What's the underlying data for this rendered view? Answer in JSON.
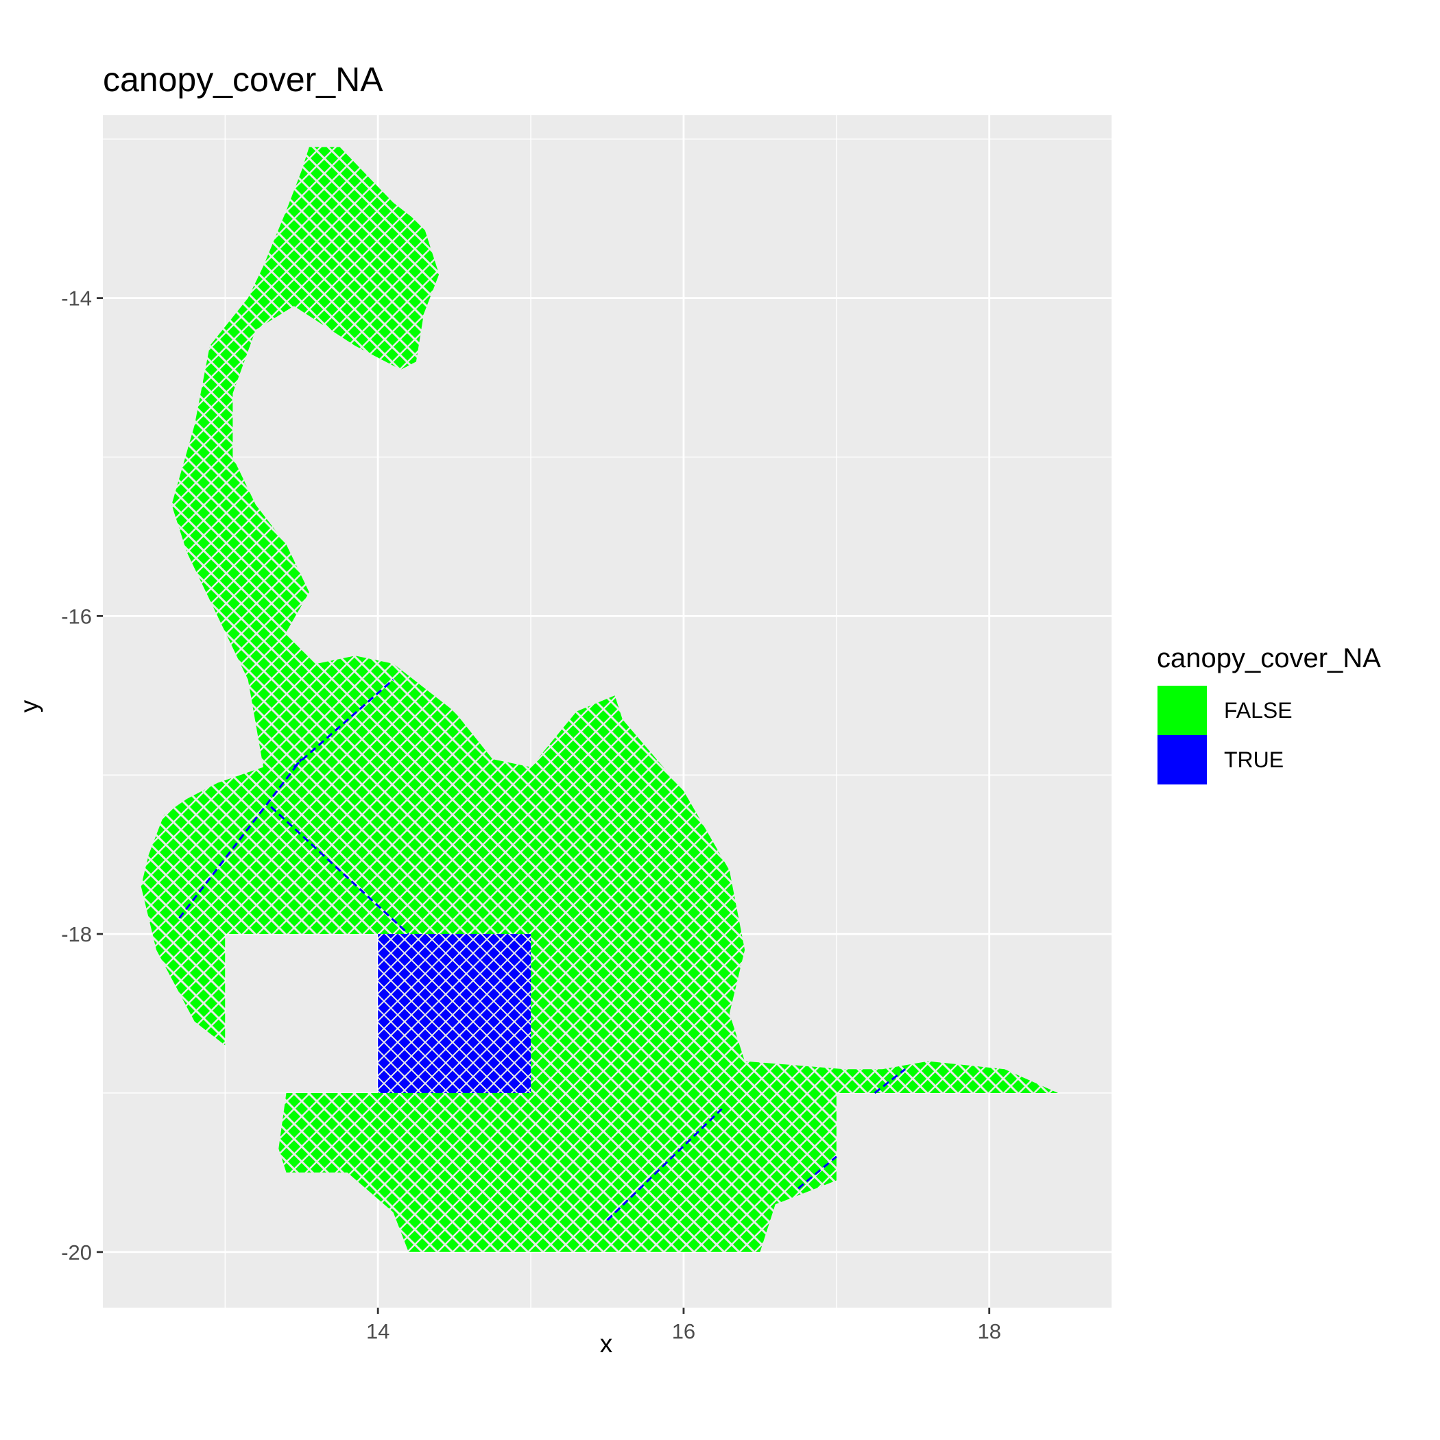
{
  "chart_data": {
    "type": "raster",
    "title": "canopy_cover_NA",
    "xlabel": "x",
    "ylabel": "y",
    "xlim": [
      12.2,
      18.8
    ],
    "ylim": [
      -20.35,
      -12.85
    ],
    "x_ticks": [
      14,
      16,
      18
    ],
    "x_tick_labels": [
      "14",
      "16",
      "18"
    ],
    "y_ticks": [
      -14,
      -16,
      -18,
      -20
    ],
    "y_tick_labels": [
      "-14",
      "-16",
      "-18",
      "-20"
    ],
    "x_minor_gridlines": [
      13,
      15,
      17
    ],
    "y_minor_gridlines": [
      -13,
      -15,
      -17,
      -19
    ],
    "background": "#ebebeb",
    "grid": true,
    "legend": {
      "title": "canopy_cover_NA",
      "position": "right",
      "entries": [
        {
          "label": "FALSE",
          "color": "#00ff00"
        },
        {
          "label": "TRUE",
          "color": "#0000ff"
        }
      ]
    },
    "series": [
      {
        "label": "FALSE",
        "color": "#00ff00",
        "region": [
          [
            13.55,
            -13.05
          ],
          [
            13.75,
            -13.05
          ],
          [
            13.95,
            -13.25
          ],
          [
            14.1,
            -13.4
          ],
          [
            14.3,
            -13.55
          ],
          [
            14.4,
            -13.85
          ],
          [
            14.3,
            -14.1
          ],
          [
            14.25,
            -14.4
          ],
          [
            14.15,
            -14.45
          ],
          [
            13.85,
            -14.3
          ],
          [
            13.45,
            -14.05
          ],
          [
            13.2,
            -14.2
          ],
          [
            13.05,
            -14.6
          ],
          [
            13.05,
            -15.0
          ],
          [
            13.2,
            -15.3
          ],
          [
            13.4,
            -15.55
          ],
          [
            13.55,
            -15.85
          ],
          [
            13.4,
            -16.1
          ],
          [
            13.6,
            -16.3
          ],
          [
            13.85,
            -16.25
          ],
          [
            14.1,
            -16.3
          ],
          [
            14.5,
            -16.6
          ],
          [
            14.75,
            -16.9
          ],
          [
            15.0,
            -16.95
          ],
          [
            15.3,
            -16.6
          ],
          [
            15.55,
            -16.5
          ],
          [
            15.6,
            -16.65
          ],
          [
            16.0,
            -17.1
          ],
          [
            16.3,
            -17.6
          ],
          [
            16.4,
            -18.1
          ],
          [
            16.3,
            -18.5
          ],
          [
            16.4,
            -18.8
          ],
          [
            17.05,
            -18.85
          ],
          [
            17.3,
            -18.85
          ],
          [
            17.6,
            -18.8
          ],
          [
            18.1,
            -18.85
          ],
          [
            18.45,
            -19.0
          ],
          [
            17.0,
            -19.0
          ],
          [
            17.0,
            -19.55
          ],
          [
            16.6,
            -19.7
          ],
          [
            16.5,
            -20.0
          ],
          [
            14.2,
            -20.0
          ],
          [
            14.1,
            -19.75
          ],
          [
            13.8,
            -19.5
          ],
          [
            13.4,
            -19.5
          ],
          [
            13.35,
            -19.35
          ],
          [
            13.4,
            -19.0
          ],
          [
            15.0,
            -19.0
          ],
          [
            15.0,
            -18.0
          ],
          [
            13.0,
            -18.0
          ],
          [
            13.0,
            -18.7
          ],
          [
            12.8,
            -18.55
          ],
          [
            12.55,
            -18.1
          ],
          [
            12.45,
            -17.7
          ],
          [
            12.5,
            -17.5
          ],
          [
            12.6,
            -17.25
          ],
          [
            12.75,
            -17.15
          ],
          [
            12.95,
            -17.05
          ],
          [
            13.25,
            -16.95
          ],
          [
            13.15,
            -16.4
          ],
          [
            12.95,
            -16.0
          ],
          [
            12.75,
            -15.6
          ],
          [
            12.65,
            -15.3
          ],
          [
            12.8,
            -14.8
          ],
          [
            12.9,
            -14.3
          ],
          [
            13.15,
            -14.0
          ],
          [
            13.25,
            -13.8
          ],
          [
            13.4,
            -13.45
          ],
          [
            13.5,
            -13.2
          ]
        ]
      },
      {
        "label": "TRUE",
        "color": "#0000ff",
        "region": [
          [
            14.0,
            -18.0
          ],
          [
            15.0,
            -18.0
          ],
          [
            15.0,
            -19.0
          ],
          [
            14.0,
            -19.0
          ]
        ],
        "streaks": [
          [
            [
              12.7,
              -17.9
            ],
            [
              13.5,
              -16.9
            ]
          ],
          [
            [
              13.3,
              -17.2
            ],
            [
              14.2,
              -18.0
            ]
          ],
          [
            [
              13.45,
              -16.95
            ],
            [
              14.1,
              -16.4
            ]
          ],
          [
            [
              15.5,
              -19.8
            ],
            [
              16.25,
              -19.1
            ]
          ],
          [
            [
              16.75,
              -19.6
            ],
            [
              17.0,
              -19.4
            ]
          ],
          [
            [
              17.25,
              -19.0
            ],
            [
              17.45,
              -18.85
            ]
          ]
        ]
      }
    ]
  }
}
